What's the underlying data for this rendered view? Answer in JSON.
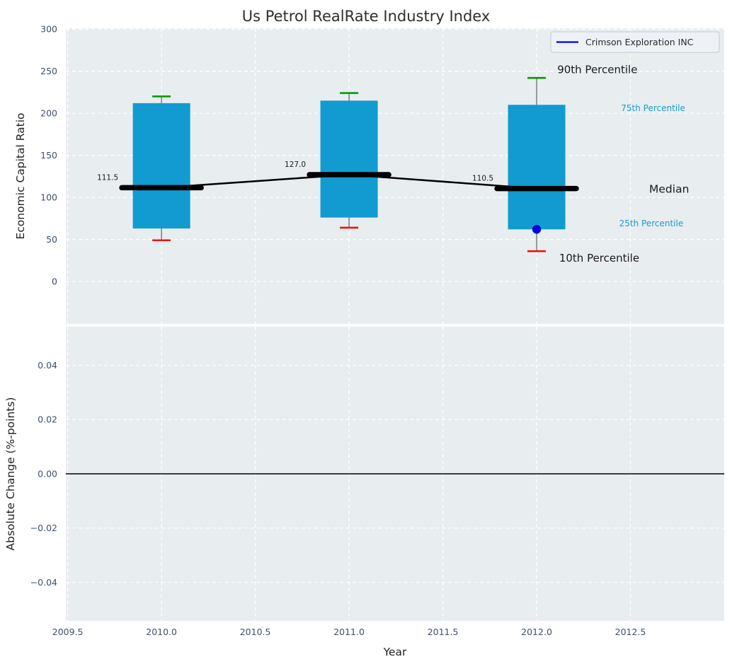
{
  "title": "Us Petrol RealRate Industry Index",
  "chart_data": {
    "type": "boxplot",
    "title": "Us Petrol RealRate Industry Index",
    "xlabel": "Year",
    "xlim": [
      2009.49,
      2013.0
    ],
    "xticks": [
      2009.5,
      2010.0,
      2010.5,
      2011.0,
      2011.5,
      2012.0,
      2012.5
    ],
    "xtick_labels": [
      "2009.5",
      "2010.0",
      "2010.5",
      "2011.0",
      "2011.5",
      "2012.0",
      "2012.5"
    ],
    "grid": "white-dashed",
    "legend_position": "upper-right",
    "colors": {
      "axes_bg": "#e8edef",
      "grid": "#ffffff",
      "box_fill": "#119bd1",
      "whisker": "#555555",
      "cap_high": "#0a9a0a",
      "cap_low": "#ee1111",
      "median": "#000000",
      "company": "#0000dd",
      "tick_label": "#3e4f6b",
      "percentile_accent": "#1b9bd0",
      "text": "#262626",
      "zero_line": "#000000"
    },
    "panels": [
      {
        "name": "economic-capital-ratio",
        "ylabel": "Economic Capital Ratio",
        "ylim": [
          -50.4,
          301
        ],
        "yticks": [
          0,
          50,
          100,
          150,
          200,
          250,
          300
        ],
        "ytick_labels": [
          "0",
          "50",
          "100",
          "150",
          "200",
          "250",
          "300"
        ],
        "boxes": [
          {
            "x": 2010,
            "p10": 49,
            "p25": 63,
            "median": 111.5,
            "p75": 212,
            "p90": 220,
            "label": "111.5"
          },
          {
            "x": 2011,
            "p10": 64,
            "p25": 76,
            "median": 127.0,
            "p75": 215,
            "p90": 224,
            "label": "127.0"
          },
          {
            "x": 2012,
            "p10": 36,
            "p25": 62,
            "median": 110.5,
            "p75": 210,
            "p90": 242,
            "label": "110.5"
          }
        ],
        "median_line": {
          "x": [
            2010,
            2011,
            2012
          ],
          "y": [
            111.5,
            127.0,
            110.5
          ]
        },
        "company_series": {
          "name": "Crimson Exploration INC",
          "points": [
            {
              "x": 2012,
              "y": 62
            }
          ]
        },
        "legend": {
          "label": "Crimson Exploration INC",
          "line_color": "#0000dd"
        },
        "annotations": [
          {
            "text": "90th Percentile",
            "x": 2012.11,
            "y": 252,
            "size": 15,
            "color": "#1a1a1a",
            "anchor": "start"
          },
          {
            "text": "75th Percentile",
            "x": 2012.45,
            "y": 206,
            "size": 12,
            "color": "#1b9bd0",
            "anchor": "start"
          },
          {
            "text": "Median",
            "x": 2012.6,
            "y": 110,
            "size": 15.5,
            "color": "#1a1a1a",
            "anchor": "start"
          },
          {
            "text": "25th Percentile",
            "x": 2012.44,
            "y": 69,
            "size": 12,
            "color": "#1b9bd0",
            "anchor": "start"
          },
          {
            "text": "10th Percentile",
            "x": 2012.12,
            "y": 28,
            "size": 15,
            "color": "#1a1a1a",
            "anchor": "start"
          }
        ]
      },
      {
        "name": "absolute-change",
        "ylabel": "Absolute Change (%-points)",
        "ylim": [
          -0.0542,
          0.0542
        ],
        "yticks": [
          0.04,
          0.02,
          0.0,
          -0.02,
          -0.04
        ],
        "ytick_labels": [
          "0.04",
          "0.02",
          "0.00",
          "−0.02",
          "−0.04"
        ],
        "zero_line": {
          "y": 0.0
        }
      }
    ]
  }
}
